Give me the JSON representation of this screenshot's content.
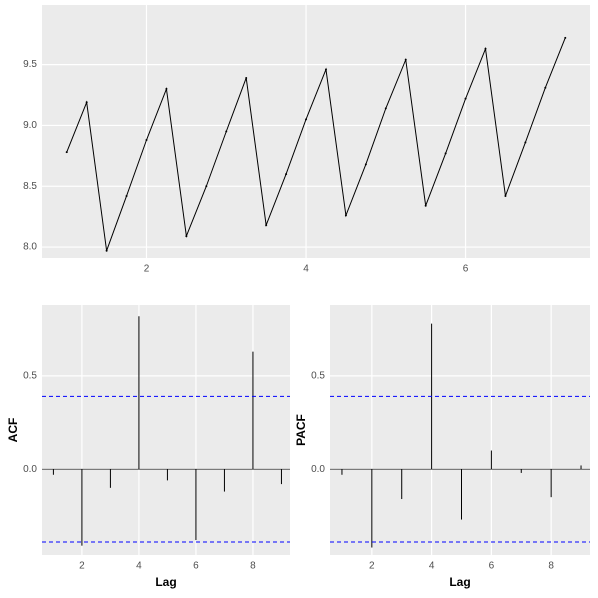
{
  "chart_data": [
    {
      "type": "line",
      "color": "#000000",
      "grid": true,
      "x": [
        1,
        1.25,
        1.5,
        1.75,
        2,
        2.25,
        2.5,
        2.75,
        3,
        3.25,
        3.5,
        3.75,
        4,
        4.25,
        4.5,
        4.75,
        5,
        5.25,
        5.5,
        5.75,
        6,
        6.25,
        6.5,
        6.75,
        7,
        7.25
      ],
      "values": [
        8.78,
        9.19,
        7.97,
        8.42,
        8.88,
        9.3,
        8.09,
        8.5,
        8.95,
        9.39,
        8.18,
        8.6,
        9.05,
        9.46,
        8.26,
        8.68,
        9.14,
        9.54,
        8.34,
        8.77,
        9.22,
        9.63,
        8.42,
        8.86,
        9.31,
        9.72
      ],
      "xlim": [
        0.69,
        7.56
      ],
      "xticks": [
        2,
        4,
        6
      ],
      "ylim": [
        7.91,
        9.99
      ],
      "yticks": [
        {
          "value": 8,
          "label": "8.0"
        },
        8.5,
        {
          "value": 9,
          "label": "9.0"
        },
        9.5
      ]
    },
    {
      "type": "bar",
      "color": "#000000",
      "grid": true,
      "x_label": "Lag",
      "y_label": "ACF",
      "x": [
        1,
        2,
        3,
        4,
        5,
        6,
        7,
        8,
        9
      ],
      "values": [
        -0.03,
        -0.41,
        -0.1,
        0.82,
        -0.06,
        -0.38,
        -0.12,
        0.63,
        -0.08
      ],
      "hlines": [
        0.39,
        -0.39
      ],
      "hline_color": "#0000ff",
      "xlim": [
        0.6,
        9.3
      ],
      "xticks": [
        2,
        4,
        6,
        8
      ],
      "ylim": [
        -0.46,
        0.88
      ],
      "yticks": [
        {
          "value": 0,
          "label": "0.0"
        },
        0.5
      ]
    },
    {
      "type": "bar",
      "color": "#000000",
      "grid": true,
      "x_label": "Lag",
      "y_label": "PACF",
      "x": [
        1,
        2,
        3,
        4,
        5,
        6,
        7,
        8,
        9
      ],
      "values": [
        -0.03,
        -0.42,
        -0.16,
        0.78,
        -0.27,
        0.1,
        -0.02,
        -0.15,
        0.02
      ],
      "hlines": [
        0.39,
        -0.39
      ],
      "hline_color": "#0000ff",
      "xlim": [
        0.6,
        9.3
      ],
      "xticks": [
        2,
        4,
        6,
        8
      ],
      "ylim": [
        -0.46,
        0.88
      ],
      "yticks": [
        {
          "value": 0,
          "label": "0.0"
        },
        0.5
      ]
    }
  ]
}
